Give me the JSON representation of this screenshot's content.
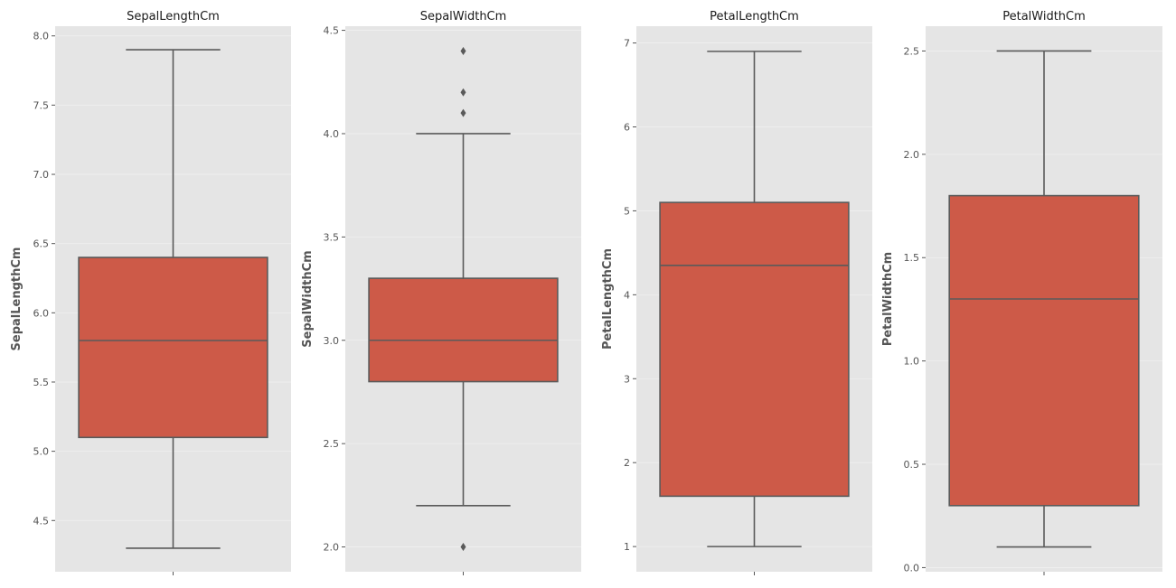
{
  "style": {
    "panel_bg": "#e5e5e5",
    "grid_color": "#f0f0f0",
    "box_fill": "#cd5a48",
    "line_color": "#5a5a5a",
    "tick_color": "#555555"
  },
  "chart_data": [
    {
      "type": "box",
      "title": "SepalLengthCm",
      "xlabel": "",
      "ylabel": "SepalLengthCm",
      "ylim": [
        4.13,
        8.07
      ],
      "yticks": [
        4.5,
        5.0,
        5.5,
        6.0,
        6.5,
        7.0,
        7.5,
        8.0
      ],
      "ytick_labels": [
        "4.5",
        "5.0",
        "5.5",
        "6.0",
        "6.5",
        "7.0",
        "7.5",
        "8.0"
      ],
      "box": {
        "whisker_low": 4.3,
        "q1": 5.1,
        "median": 5.8,
        "q3": 6.4,
        "whisker_high": 7.9
      },
      "outliers": [],
      "grid": true
    },
    {
      "type": "box",
      "title": "SepalWidthCm",
      "xlabel": "",
      "ylabel": "SepalWidthCm",
      "ylim": [
        1.88,
        4.52
      ],
      "yticks": [
        2.0,
        2.5,
        3.0,
        3.5,
        4.0,
        4.5
      ],
      "ytick_labels": [
        "2.0",
        "2.5",
        "3.0",
        "3.5",
        "4.0",
        "4.5"
      ],
      "box": {
        "whisker_low": 2.2,
        "q1": 2.8,
        "median": 3.0,
        "q3": 3.3,
        "whisker_high": 4.0
      },
      "outliers": [
        4.4,
        4.2,
        4.1,
        2.0
      ],
      "grid": true
    },
    {
      "type": "box",
      "title": "PetalLengthCm",
      "xlabel": "",
      "ylabel": "PetalLengthCm",
      "ylim": [
        0.7,
        7.2
      ],
      "yticks": [
        1,
        2,
        3,
        4,
        5,
        6,
        7
      ],
      "ytick_labels": [
        "1",
        "2",
        "3",
        "4",
        "5",
        "6",
        "7"
      ],
      "box": {
        "whisker_low": 1.0,
        "q1": 1.6,
        "median": 4.35,
        "q3": 5.1,
        "whisker_high": 6.9
      },
      "outliers": [],
      "grid": true
    },
    {
      "type": "box",
      "title": "PetalWidthCm",
      "xlabel": "",
      "ylabel": "PetalWidthCm",
      "ylim": [
        -0.02,
        2.62
      ],
      "yticks": [
        0.0,
        0.5,
        1.0,
        1.5,
        2.0,
        2.5
      ],
      "ytick_labels": [
        "0.0",
        "0.5",
        "1.0",
        "1.5",
        "2.0",
        "2.5"
      ],
      "box": {
        "whisker_low": 0.1,
        "q1": 0.3,
        "median": 1.3,
        "q3": 1.8,
        "whisker_high": 2.5
      },
      "outliers": [],
      "grid": true
    }
  ]
}
